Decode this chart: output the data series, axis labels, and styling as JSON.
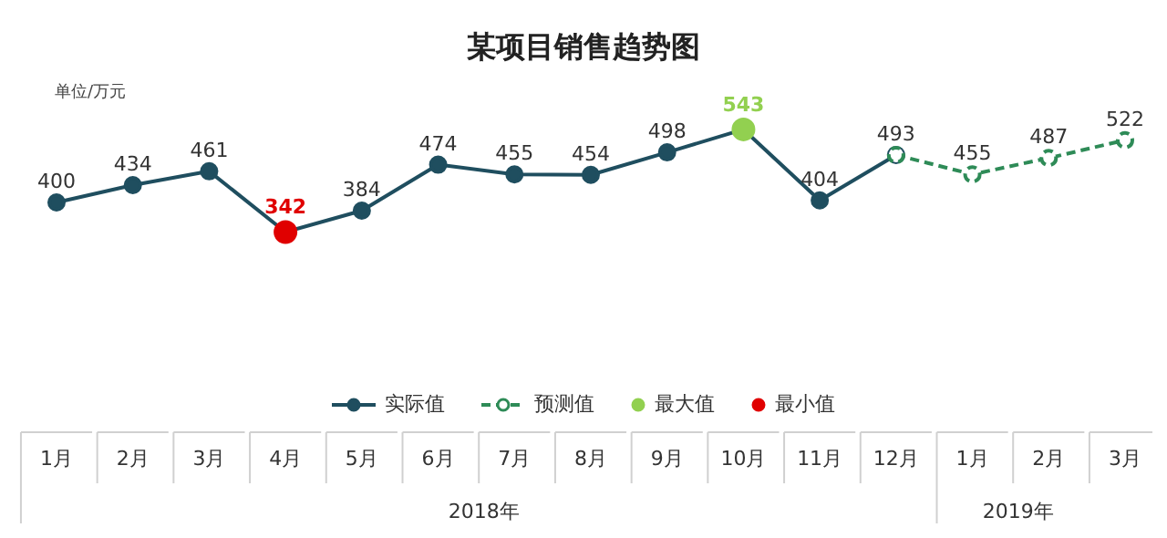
{
  "chart_data": {
    "type": "line",
    "title": "某项目销售趋势图",
    "ylabel": "单位/万元",
    "categories": [
      "1月",
      "2月",
      "3月",
      "4月",
      "5月",
      "6月",
      "7月",
      "8月",
      "9月",
      "10月",
      "11月",
      "12月",
      "1月",
      "2月",
      "3月"
    ],
    "series": [
      {
        "name": "实际值",
        "color": "#1f4e5f",
        "values": [
          400,
          434,
          461,
          342,
          384,
          474,
          455,
          454,
          498,
          543,
          404,
          493,
          null,
          null,
          null
        ],
        "value_labels": [
          "400",
          "434",
          "461",
          null,
          "384",
          "474",
          "455",
          "454",
          "498",
          null,
          "404",
          "493",
          null,
          null,
          null
        ]
      },
      {
        "name": "预测值",
        "color": "#2e8b57",
        "line_style": "dashed",
        "values": [
          null,
          null,
          null,
          null,
          null,
          null,
          null,
          null,
          null,
          null,
          null,
          493,
          455,
          487,
          522
        ],
        "value_labels": [
          null,
          null,
          null,
          null,
          null,
          null,
          null,
          null,
          null,
          null,
          null,
          null,
          "455",
          "487",
          "522"
        ]
      },
      {
        "name": "最大值",
        "type": "scatter",
        "color": "#92d050",
        "values": [
          null,
          null,
          null,
          null,
          null,
          null,
          null,
          null,
          null,
          543,
          null,
          null,
          null,
          null,
          null
        ],
        "value_labels": [
          null,
          null,
          null,
          null,
          null,
          null,
          null,
          null,
          null,
          "543",
          null,
          null,
          null,
          null,
          null
        ]
      },
      {
        "name": "最小值",
        "type": "scatter",
        "color": "#e00000",
        "values": [
          null,
          null,
          null,
          342,
          null,
          null,
          null,
          null,
          null,
          null,
          null,
          null,
          null,
          null,
          null
        ],
        "value_labels": [
          null,
          null,
          null,
          "342",
          null,
          null,
          null,
          null,
          null,
          null,
          null,
          null,
          null,
          null,
          null
        ]
      }
    ],
    "annotations": [
      "2018年",
      "2019年"
    ],
    "legend": "bottom",
    "marker": "circle"
  }
}
